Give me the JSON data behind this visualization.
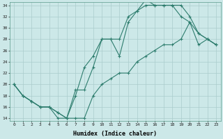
{
  "title": "",
  "xlabel": "Humidex (Indice chaleur)",
  "ylabel": "",
  "bg_color": "#cce8e8",
  "line_color": "#2e7d6e",
  "grid_color": "#aacccc",
  "xlim": [
    -0.5,
    23.5
  ],
  "ylim": [
    13.5,
    34.5
  ],
  "xticks": [
    0,
    1,
    2,
    3,
    4,
    5,
    6,
    7,
    8,
    9,
    10,
    11,
    12,
    13,
    14,
    15,
    16,
    17,
    18,
    19,
    20,
    21,
    22,
    23
  ],
  "yticks": [
    14,
    16,
    18,
    20,
    22,
    24,
    26,
    28,
    30,
    32,
    34
  ],
  "line1_x": [
    0,
    1,
    2,
    3,
    4,
    5,
    6,
    7,
    8,
    9,
    10,
    11,
    12,
    13,
    14,
    15,
    16,
    17,
    18,
    19,
    20,
    21,
    22,
    23
  ],
  "line1_y": [
    20,
    18,
    17,
    16,
    16,
    15,
    14,
    18,
    23,
    25,
    28,
    28,
    28,
    32,
    33,
    34,
    34,
    34,
    34,
    32,
    31,
    29,
    28,
    27
  ],
  "line2_x": [
    0,
    1,
    2,
    3,
    4,
    5,
    6,
    7,
    8,
    9,
    10,
    11,
    12,
    13,
    14,
    15,
    16,
    17,
    18,
    19,
    20,
    21,
    22,
    23
  ],
  "line2_y": [
    20,
    18,
    17,
    16,
    16,
    15,
    14,
    19,
    19,
    23,
    28,
    28,
    25,
    31,
    33,
    35,
    34,
    34,
    34,
    34,
    32,
    29,
    28,
    27
  ],
  "line3_x": [
    0,
    1,
    2,
    3,
    4,
    5,
    6,
    7,
    8,
    9,
    10,
    11,
    12,
    13,
    14,
    15,
    16,
    17,
    18,
    19,
    20,
    21,
    22,
    23
  ],
  "line3_y": [
    20,
    18,
    17,
    16,
    16,
    14,
    14,
    14,
    14,
    18,
    20,
    21,
    22,
    22,
    24,
    25,
    26,
    27,
    27,
    28,
    31,
    27,
    28,
    27
  ]
}
